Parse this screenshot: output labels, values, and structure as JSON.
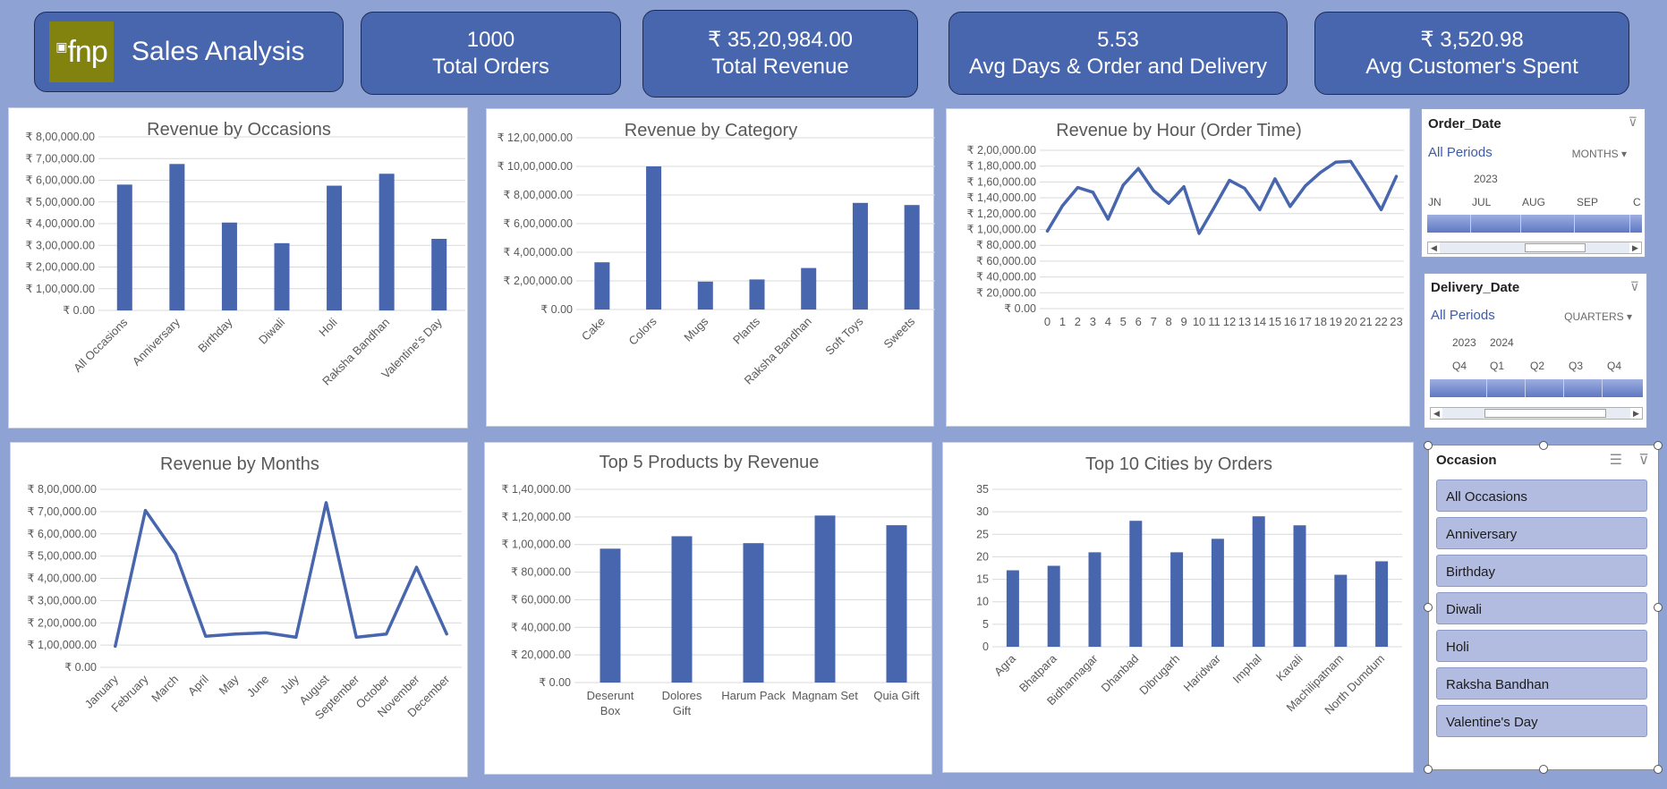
{
  "header": {
    "logo_text": "fnp",
    "title": "Sales Analysis",
    "kpis": [
      {
        "value": "1000",
        "label": "Total Orders"
      },
      {
        "value": "₹ 35,20,984.00",
        "label": "Total Revenue"
      },
      {
        "value": "5.53",
        "label": "Avg Days & Order and Delivery"
      },
      {
        "value": "₹ 3,520.98",
        "label": "Avg Customer's Spent"
      }
    ]
  },
  "colors": {
    "bar": "#4766ae",
    "background": "#8fa2d4"
  },
  "chart_data": [
    {
      "type": "bar",
      "title": "Revenue by Occasions",
      "categories": [
        "All Occasions",
        "Anniversary",
        "Birthday",
        "Diwali",
        "Holi",
        "Raksha Bandhan",
        "Valentine's Day"
      ],
      "values": [
        580000,
        675000,
        405000,
        310000,
        575000,
        630000,
        330000
      ],
      "ylim": [
        0,
        800000
      ],
      "yticks": [
        "₹ 0.00",
        "₹ 1,00,000.00",
        "₹ 2,00,000.00",
        "₹ 3,00,000.00",
        "₹ 4,00,000.00",
        "₹ 5,00,000.00",
        "₹ 6,00,000.00",
        "₹ 7,00,000.00",
        "₹ 8,00,000.00"
      ],
      "grid": true
    },
    {
      "type": "bar",
      "title": "Revenue by Category",
      "categories": [
        "Cake",
        "Colors",
        "Mugs",
        "Plants",
        "Raksha Bandhan",
        "Soft Toys",
        "Sweets"
      ],
      "values": [
        330000,
        1000000,
        195000,
        210000,
        290000,
        745000,
        730000
      ],
      "ylim": [
        0,
        1200000
      ],
      "yticks": [
        "₹ 0.00",
        "₹ 2,00,000.00",
        "₹ 4,00,000.00",
        "₹ 6,00,000.00",
        "₹ 8,00,000.00",
        "₹ 10,00,000.00",
        "₹ 12,00,000.00"
      ],
      "grid": true
    },
    {
      "type": "line",
      "title": "Revenue by Hour (Order Time)",
      "categories": [
        "0",
        "1",
        "2",
        "3",
        "4",
        "5",
        "6",
        "7",
        "8",
        "9",
        "10",
        "11",
        "12",
        "13",
        "14",
        "15",
        "16",
        "17",
        "18",
        "19",
        "20",
        "21",
        "22",
        "23"
      ],
      "values": [
        98000,
        130000,
        153000,
        147000,
        113000,
        156000,
        177000,
        149000,
        133000,
        154000,
        95000,
        128000,
        162000,
        152000,
        125000,
        164000,
        129000,
        155000,
        172000,
        185000,
        186000,
        156000,
        125000,
        167000
      ],
      "ylim": [
        0,
        200000
      ],
      "yticks": [
        "₹ 0.00",
        "₹ 20,000.00",
        "₹ 40,000.00",
        "₹ 60,000.00",
        "₹ 80,000.00",
        "₹ 1,00,000.00",
        "₹ 1,20,000.00",
        "₹ 1,40,000.00",
        "₹ 1,60,000.00",
        "₹ 1,80,000.00",
        "₹ 2,00,000.00"
      ],
      "grid": true
    },
    {
      "type": "line",
      "title": "Revenue by Months",
      "categories": [
        "January",
        "February",
        "March",
        "April",
        "May",
        "June",
        "July",
        "August",
        "September",
        "October",
        "November",
        "December"
      ],
      "values": [
        95000,
        705000,
        510000,
        140000,
        150000,
        155000,
        135000,
        740000,
        135000,
        150000,
        450000,
        150000
      ],
      "ylim": [
        0,
        800000
      ],
      "yticks": [
        "₹ 0.00",
        "₹ 1,00,000.00",
        "₹ 2,00,000.00",
        "₹ 3,00,000.00",
        "₹ 4,00,000.00",
        "₹ 5,00,000.00",
        "₹ 6,00,000.00",
        "₹ 7,00,000.00",
        "₹ 8,00,000.00"
      ],
      "grid": true
    },
    {
      "type": "bar",
      "title": "Top 5 Products by Revenue",
      "categories": [
        "Deserunt Box",
        "Dolores Gift",
        "Harum Pack",
        "Magnam Set",
        "Quia Gift"
      ],
      "values": [
        97000,
        106000,
        101000,
        121000,
        114000
      ],
      "ylim": [
        0,
        140000
      ],
      "yticks": [
        "₹ 0.00",
        "₹ 20,000.00",
        "₹ 40,000.00",
        "₹ 60,000.00",
        "₹ 80,000.00",
        "₹ 1,00,000.00",
        "₹ 1,20,000.00",
        "₹ 1,40,000.00"
      ],
      "grid": true
    },
    {
      "type": "bar",
      "title": "Top 10 Cities by Orders",
      "categories": [
        "Agra",
        "Bhatpara",
        "Bidhannagar",
        "Dhanbad",
        "Dibrugarh",
        "Haridwar",
        "Imphal",
        "Kavali",
        "Machilipatnam",
        "North Dumdum"
      ],
      "values": [
        17,
        18,
        21,
        28,
        21,
        24,
        29,
        27,
        16,
        19
      ],
      "ylim": [
        0,
        35
      ],
      "yticks": [
        "0",
        "5",
        "10",
        "15",
        "20",
        "25",
        "30",
        "35"
      ],
      "grid": true
    }
  ],
  "slicers": {
    "order_date": {
      "title": "Order_Date",
      "all_periods": "All Periods",
      "level": "MONTHS",
      "year": "2023",
      "periods": [
        "JN",
        "JUL",
        "AUG",
        "SEP",
        "C"
      ]
    },
    "delivery_date": {
      "title": "Delivery_Date",
      "all_periods": "All Periods",
      "level": "QUARTERS",
      "years": [
        "2023",
        "2024"
      ],
      "periods": [
        "Q4",
        "Q1",
        "Q2",
        "Q3",
        "Q4"
      ]
    },
    "occasion": {
      "title": "Occasion",
      "items": [
        "All Occasions",
        "Anniversary",
        "Birthday",
        "Diwali",
        "Holi",
        "Raksha Bandhan",
        "Valentine's Day"
      ]
    }
  }
}
